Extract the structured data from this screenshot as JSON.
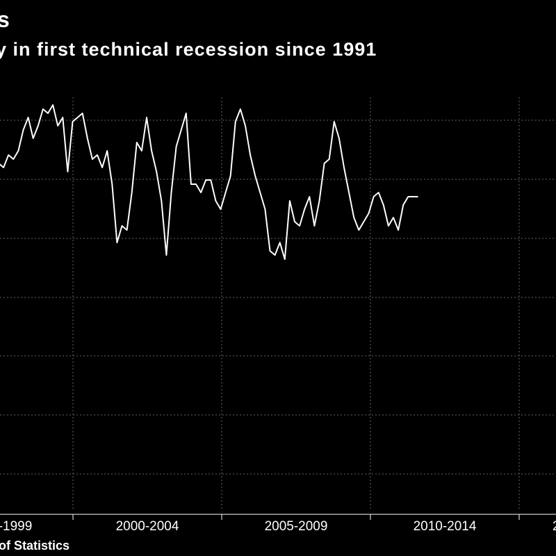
{
  "header": {
    "title": "s",
    "subtitle": "y in first technical recession since 1991"
  },
  "footer": {
    "source": "of Statistics"
  },
  "chart_data": {
    "type": "line",
    "title": "s",
    "subtitle": "y in first technical recession since 1991",
    "xlabel": "",
    "ylabel": "",
    "tick_labels": [
      "-1999",
      "2000-2004",
      "2005-2009",
      "2010-2014",
      "2"
    ],
    "grid": true,
    "colors": {
      "background": "#000000",
      "line": "#ffffff",
      "grid": "#666666"
    },
    "series": [
      {
        "values": [
          2.5,
          2.4,
          2.7,
          2.6,
          2.8,
          3.3,
          3.6,
          3.1,
          3.4,
          3.8,
          3.7,
          3.9,
          3.4,
          3.6,
          2.3,
          3.5,
          3.6,
          3.7,
          3.1,
          2.6,
          2.7,
          2.4,
          2.8,
          2.0,
          0.6,
          1.0,
          0.9,
          1.8,
          3.0,
          2.8,
          3.6,
          2.8,
          2.3,
          1.6,
          0.3,
          1.8,
          2.9,
          3.3,
          3.7,
          2.0,
          2.0,
          1.8,
          2.1,
          2.1,
          1.6,
          1.4,
          1.8,
          2.2,
          3.5,
          3.8,
          3.4,
          2.7,
          2.2,
          1.8,
          1.4,
          0.4,
          0.3,
          0.6,
          0.2,
          1.6,
          1.1,
          1.0,
          1.4,
          1.7,
          1.0,
          1.6,
          2.5,
          2.6,
          3.5,
          3.1,
          2.4,
          1.8,
          1.2,
          0.9,
          1.1,
          1.3,
          1.7,
          1.8,
          1.5,
          1.0,
          1.2,
          0.9,
          1.5,
          1.7,
          1.7,
          1.7
        ]
      }
    ]
  }
}
